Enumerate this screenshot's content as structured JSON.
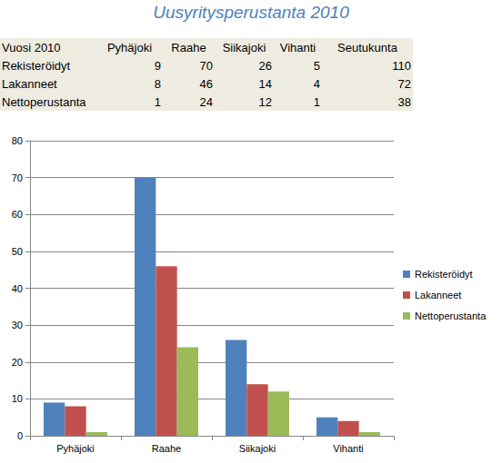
{
  "title": "Uusyritysperustanta 2010",
  "table": {
    "header": [
      "Vuosi 2010",
      "Pyhäjoki",
      "Raahe",
      "Siikajoki",
      "Vihanti",
      "Seutukunta"
    ],
    "rows": [
      [
        "Rekisteröidyt",
        9,
        70,
        26,
        5,
        110
      ],
      [
        "Lakanneet",
        8,
        46,
        14,
        4,
        72
      ],
      [
        "Nettoperustanta",
        1,
        24,
        12,
        1,
        38
      ]
    ]
  },
  "chart_data": {
    "type": "bar",
    "categories": [
      "Pyhäjoki",
      "Raahe",
      "Siikajoki",
      "Vihanti"
    ],
    "series": [
      {
        "name": "Rekisteröidyt",
        "color": "#4f81bd",
        "values": [
          9,
          70,
          26,
          5
        ]
      },
      {
        "name": "Lakanneet",
        "color": "#c0504d",
        "values": [
          8,
          46,
          14,
          4
        ]
      },
      {
        "name": "Nettoperustanta",
        "color": "#9bbb59",
        "values": [
          1,
          24,
          12,
          1
        ]
      }
    ],
    "ylim": [
      0,
      80
    ],
    "yticks": [
      0,
      10,
      20,
      30,
      40,
      50,
      60,
      70,
      80
    ],
    "grid": true,
    "legend": "right"
  }
}
